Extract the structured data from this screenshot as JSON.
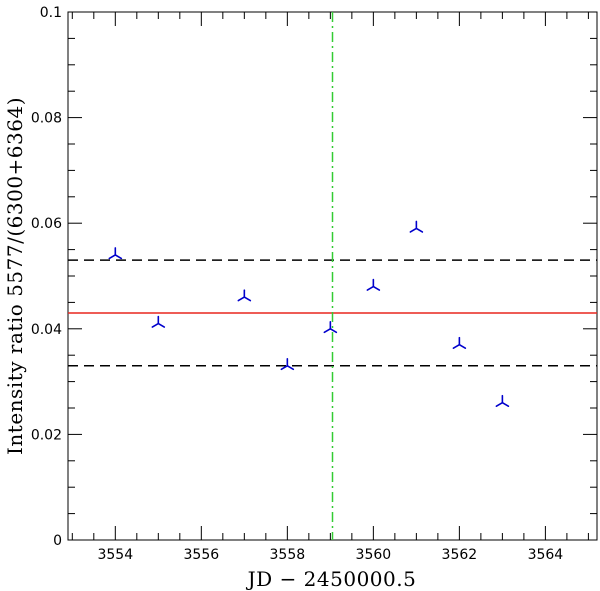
{
  "chart_data": {
    "type": "scatter",
    "title": "",
    "xlabel": "JD − 2450000.5",
    "ylabel": "Intensity ratio 5577/(6300+6364)",
    "xlim": [
      3552.9,
      3565.2
    ],
    "ylim": [
      0,
      0.1
    ],
    "x_ticks": [
      3554,
      3556,
      3558,
      3560,
      3562,
      3564
    ],
    "x_tick_labels": [
      "3554",
      "3556",
      "3558",
      "3560",
      "3562",
      "3564"
    ],
    "y_ticks": [
      0,
      0.02,
      0.04,
      0.06,
      0.08,
      0.1
    ],
    "y_tick_labels": [
      "0",
      "0.02",
      "0.04",
      "0.06",
      "0.08",
      "0.1"
    ],
    "grid": false,
    "series": [
      {
        "marker": "tri_down",
        "color": "#0000cc",
        "points": [
          {
            "x": 3554,
            "y": 0.054
          },
          {
            "x": 3555,
            "y": 0.041
          },
          {
            "x": 3557,
            "y": 0.046
          },
          {
            "x": 3558,
            "y": 0.033
          },
          {
            "x": 3559,
            "y": 0.04
          },
          {
            "x": 3560,
            "y": 0.048
          },
          {
            "x": 3561,
            "y": 0.059
          },
          {
            "x": 3562,
            "y": 0.037
          },
          {
            "x": 3563,
            "y": 0.026
          }
        ]
      }
    ],
    "reference_lines": [
      {
        "orientation": "horizontal",
        "value": 0.043,
        "style": "solid",
        "color": "#e8271e"
      },
      {
        "orientation": "horizontal",
        "value": 0.053,
        "style": "dashed",
        "color": "#000000"
      },
      {
        "orientation": "horizontal",
        "value": 0.033,
        "style": "dashed",
        "color": "#000000"
      },
      {
        "orientation": "vertical",
        "value": 3559.05,
        "style": "dash-dot",
        "color": "#33cc33"
      }
    ]
  }
}
